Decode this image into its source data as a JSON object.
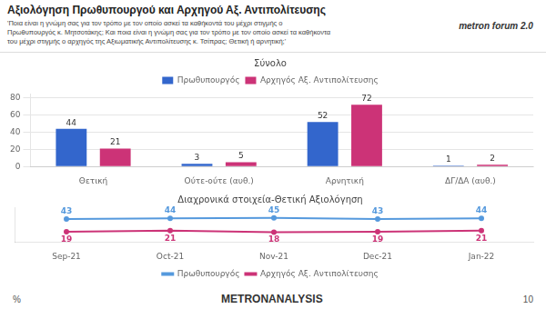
{
  "title": "Αξιολόγηση Πρωθυπουργού και Αρχηγού Αξ. Αντιπολίτευσης",
  "subtitle": "'Ποια είναι η γνώμη σας για τον τρόπο με τον οποίο ασκεί τα καθήκοντά του μέχρι στιγμής ο\nΠρωθυπουργός κ. Μητσοτάκης; Και ποια είναι η γνώμη σας για τον τρόπο με τον οποίο ασκεί τα καθήκοντα\nτου μέχρι στιγμής ο αρχηγός της Αξιωματικής Αντιπολίτευσης κ. Τσίπρας; Θετική ή αρνητική;'",
  "annotations": [
    "metron forum 2.0",
    "%",
    "METRONANALYSIS",
    "10"
  ],
  "chart_data": [
    {
      "type": "bar",
      "title": "Σύνολο",
      "categories": [
        "Θετική",
        "Ούτε-ούτε (αυθ.)",
        "Αρνητική",
        "ΔΓ/ΔΑ (αυθ.)"
      ],
      "series": [
        {
          "name": "Πρωθυπουργός",
          "color": "#3366cc",
          "values": [
            44,
            3,
            52,
            1
          ]
        },
        {
          "name": "Αρχηγός Αξ. Αντιπολίτευσης",
          "color": "#cc3377",
          "values": [
            21,
            5,
            72,
            2
          ]
        }
      ],
      "ylim": [
        0,
        85
      ],
      "yticks": [
        0,
        20,
        40,
        60,
        80
      ],
      "grid": true,
      "legend": "top",
      "data_labels": true
    },
    {
      "type": "line",
      "title": "Διαχρονικά στοιχεία-Θετική Αξιολόγηση",
      "categories": [
        "Sep-21",
        "Oct-21",
        "Nov-21",
        "Dec-21",
        "Jan-22"
      ],
      "series": [
        {
          "name": "Πρωθυπουργός",
          "color": "#5599dd",
          "values": [
            43,
            44,
            45,
            43,
            44
          ]
        },
        {
          "name": "Αρχηγός Αξ. Αντιπολίτευσης",
          "color": "#cc3377",
          "values": [
            19,
            21,
            18,
            19,
            21
          ]
        }
      ],
      "ylim": [
        0,
        65
      ],
      "yticks": [],
      "grid": false,
      "legend": "bottom",
      "data_labels": true,
      "tick_labels": "x"
    }
  ]
}
